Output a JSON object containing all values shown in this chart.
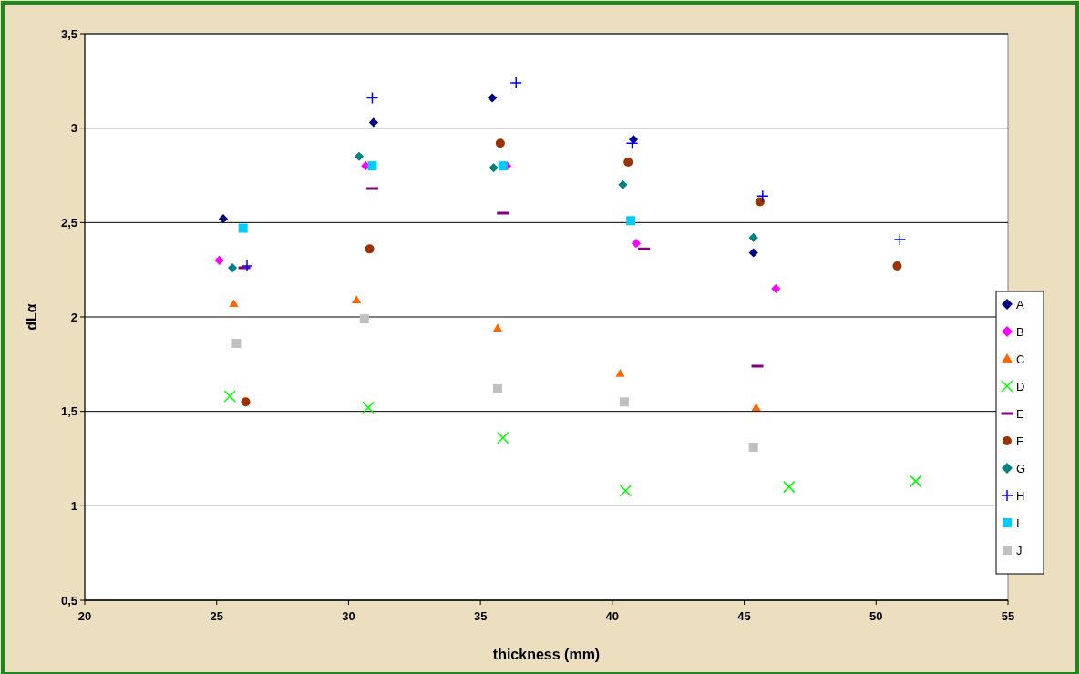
{
  "chart_data": {
    "type": "scatter",
    "xlabel": "thickness (mm)",
    "ylabel": "dLα",
    "xlim": [
      20,
      55
    ],
    "xticks": [
      20,
      25,
      30,
      35,
      40,
      45,
      50,
      55
    ],
    "ylim": [
      0.5,
      3.5
    ],
    "yticks": [
      {
        "value": 0.5,
        "label": "0,5"
      },
      1,
      {
        "value": 1.5,
        "label": "1,5"
      },
      2,
      {
        "value": 2.5,
        "label": "2,5"
      },
      3,
      {
        "value": 3.5,
        "label": "3,5"
      }
    ],
    "grid": "y",
    "legend": "right",
    "series": [
      {
        "name": "A",
        "color": "#000080",
        "marker": "diamond",
        "x": [
          25.25,
          30.95,
          35.45,
          40.8,
          45.35
        ],
        "values": [
          2.52,
          3.03,
          3.16,
          2.94,
          2.34
        ]
      },
      {
        "name": "B",
        "color": "#ff00ff",
        "marker": "diamond",
        "x": [
          25.1,
          30.65,
          36.0,
          40.9,
          46.2
        ],
        "values": [
          2.3,
          2.8,
          2.8,
          2.39,
          2.15
        ]
      },
      {
        "name": "C",
        "color": "#ff6600",
        "marker": "triangle",
        "x": [
          25.65,
          30.3,
          35.65,
          40.3,
          45.45
        ],
        "values": [
          2.07,
          2.09,
          1.94,
          1.7,
          1.52
        ]
      },
      {
        "name": "D",
        "color": "#00ff00",
        "marker": "cross",
        "x": [
          25.5,
          30.75,
          35.85,
          40.5,
          46.7,
          51.5
        ],
        "values": [
          1.58,
          1.52,
          1.36,
          1.08,
          1.1,
          1.13
        ]
      },
      {
        "name": "E",
        "color": "#800080",
        "x": [
          26.05,
          30.9,
          35.85,
          41.2,
          45.5
        ],
        "values": [
          2.26,
          2.68,
          2.55,
          2.36,
          1.74
        ]
      },
      {
        "name": "F",
        "color": "#993300",
        "marker": "circle",
        "x": [
          26.1,
          30.8,
          35.75,
          40.6,
          45.6,
          50.8
        ],
        "values": [
          1.55,
          2.36,
          2.92,
          2.82,
          2.61,
          2.27
        ]
      },
      {
        "name": "G",
        "color": "#008080",
        "marker": "diamond",
        "x": [
          25.6,
          30.4,
          35.5,
          40.4,
          45.35
        ],
        "values": [
          2.26,
          2.85,
          2.79,
          2.7,
          2.42
        ]
      },
      {
        "name": "H",
        "color": "#0000ff",
        "marker": "plus",
        "x": [
          26.15,
          30.9,
          36.35,
          40.75,
          45.7,
          50.9
        ],
        "values": [
          2.27,
          3.16,
          3.24,
          2.92,
          2.64,
          2.41
        ]
      },
      {
        "name": "I",
        "color": "#00ccff",
        "marker": "square",
        "x": [
          26.0,
          30.9,
          35.85,
          40.7
        ],
        "values": [
          2.47,
          2.8,
          2.8,
          2.51
        ]
      },
      {
        "name": "J",
        "color": "#c0c0c0",
        "marker": "square",
        "x": [
          25.75,
          30.6,
          35.65,
          40.45,
          45.35
        ],
        "values": [
          1.86,
          1.99,
          1.62,
          1.55,
          1.31
        ]
      }
    ]
  }
}
